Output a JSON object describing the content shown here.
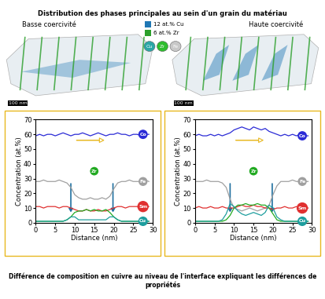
{
  "header": {
    "title": "Distribution des phases principales au sein d'un grain du matériau"
  },
  "panels": [
    {
      "label": "Basse coercivité",
      "scale_bar": "100 nm"
    },
    {
      "label": "Haute coercivité",
      "scale_bar": "100 nm"
    }
  ],
  "phase_legend": [
    {
      "label": "12 at.% Cu",
      "color": "#1f77b4"
    },
    {
      "label": "6 at.% Zr",
      "color": "#2ca02c"
    }
  ],
  "element_markers": [
    {
      "label": "Cu",
      "color": "#2aa6a6"
    },
    {
      "label": "Zr",
      "color": "#2ebd2e"
    },
    {
      "label": "Fe",
      "color": "#c8c8c8"
    }
  ],
  "chart_data": [
    {
      "type": "line",
      "xlabel": "Distance (nm)",
      "ylabel": "Concentration (at.%)",
      "xlim": [
        0,
        30
      ],
      "xticks": [
        0,
        5,
        10,
        15,
        20,
        25,
        30
      ],
      "ylim": [
        0,
        70
      ],
      "yticks": [
        0,
        10,
        20,
        30,
        40,
        50,
        60,
        70
      ],
      "x": [
        0,
        1,
        2,
        3,
        4,
        5,
        6,
        7,
        8,
        9,
        10,
        11,
        12,
        13,
        14,
        15,
        16,
        17,
        18,
        19,
        20,
        21,
        22,
        23,
        24,
        25,
        26,
        27,
        28,
        29
      ],
      "series": [
        {
          "name": "Co",
          "color": "#2b2bd6",
          "values": [
            59,
            60,
            59,
            60,
            60,
            59,
            60,
            61,
            60,
            59,
            60,
            60,
            61,
            60,
            59,
            60,
            61,
            60,
            59,
            60,
            60,
            61,
            60,
            60,
            59,
            60,
            60,
            59,
            60,
            60
          ]
        },
        {
          "name": "Fe",
          "color": "#a0a0a0",
          "values": [
            28,
            28,
            29,
            28,
            28,
            28,
            29,
            28,
            27,
            24,
            19,
            17,
            16,
            16,
            17,
            16,
            16,
            17,
            16,
            18,
            23,
            27,
            28,
            28,
            29,
            28,
            28,
            28,
            29,
            28
          ]
        },
        {
          "name": "Sm",
          "color": "#e03030",
          "values": [
            11,
            11,
            10,
            11,
            11,
            11,
            10,
            11,
            11,
            10,
            9,
            8,
            8,
            9,
            8,
            8,
            9,
            8,
            8,
            9,
            10,
            11,
            11,
            10,
            11,
            11,
            11,
            10,
            11,
            11
          ]
        },
        {
          "name": "Zr",
          "color": "#22aa22",
          "values": [
            1,
            1,
            1,
            1,
            1,
            1,
            1,
            1,
            2,
            4,
            7,
            8,
            8,
            9,
            8,
            9,
            8,
            8,
            9,
            7,
            4,
            2,
            1,
            1,
            1,
            1,
            1,
            1,
            1,
            1
          ]
        },
        {
          "name": "Cu",
          "color": "#1e9e9e",
          "values": [
            1,
            1,
            1,
            1,
            1,
            1,
            1,
            1,
            2,
            4,
            4,
            2,
            2,
            2,
            2,
            2,
            2,
            2,
            2,
            4,
            4,
            2,
            1,
            1,
            1,
            1,
            1,
            1,
            1,
            1
          ]
        }
      ]
    },
    {
      "type": "line",
      "xlabel": "Distance (nm)",
      "ylabel": "Concentration (at.%)",
      "xlim": [
        0,
        30
      ],
      "xticks": [
        0,
        5,
        10,
        15,
        20,
        25,
        30
      ],
      "ylim": [
        0,
        70
      ],
      "yticks": [
        0,
        10,
        20,
        30,
        40,
        50,
        60,
        70
      ],
      "x": [
        0,
        1,
        2,
        3,
        4,
        5,
        6,
        7,
        8,
        9,
        10,
        11,
        12,
        13,
        14,
        15,
        16,
        17,
        18,
        19,
        20,
        21,
        22,
        23,
        24,
        25,
        26,
        27,
        28,
        29
      ],
      "series": [
        {
          "name": "Co",
          "color": "#2b2bd6",
          "values": [
            59,
            60,
            59,
            59,
            60,
            59,
            60,
            59,
            60,
            61,
            63,
            64,
            65,
            64,
            63,
            65,
            64,
            63,
            64,
            62,
            61,
            60,
            59,
            60,
            59,
            60,
            59,
            60,
            59,
            59
          ]
        },
        {
          "name": "Fe",
          "color": "#a0a0a0",
          "values": [
            28,
            28,
            28,
            29,
            28,
            28,
            28,
            27,
            24,
            16,
            10,
            9,
            8,
            9,
            10,
            9,
            8,
            9,
            10,
            12,
            19,
            25,
            28,
            28,
            28,
            29,
            28,
            28,
            28,
            28
          ]
        },
        {
          "name": "Sm",
          "color": "#e03030",
          "values": [
            10,
            11,
            10,
            10,
            11,
            10,
            10,
            11,
            10,
            10,
            10,
            11,
            12,
            11,
            11,
            12,
            11,
            11,
            10,
            10,
            9,
            10,
            10,
            11,
            10,
            10,
            11,
            10,
            10,
            10
          ]
        },
        {
          "name": "Zr",
          "color": "#22aa22",
          "values": [
            1,
            1,
            1,
            1,
            1,
            1,
            1,
            1,
            2,
            5,
            10,
            12,
            12,
            13,
            12,
            12,
            13,
            12,
            12,
            10,
            6,
            2,
            1,
            1,
            1,
            1,
            1,
            1,
            1,
            1
          ]
        },
        {
          "name": "Cu",
          "color": "#1e9e9e",
          "values": [
            1,
            1,
            1,
            1,
            1,
            1,
            1,
            2,
            6,
            13,
            11,
            8,
            6,
            5,
            6,
            7,
            6,
            5,
            7,
            12,
            10,
            4,
            2,
            1,
            1,
            1,
            1,
            1,
            1,
            1
          ]
        }
      ]
    }
  ],
  "caption": "Différence de composition en cuivre au niveau de l'interface expliquant les différences de propriétés"
}
